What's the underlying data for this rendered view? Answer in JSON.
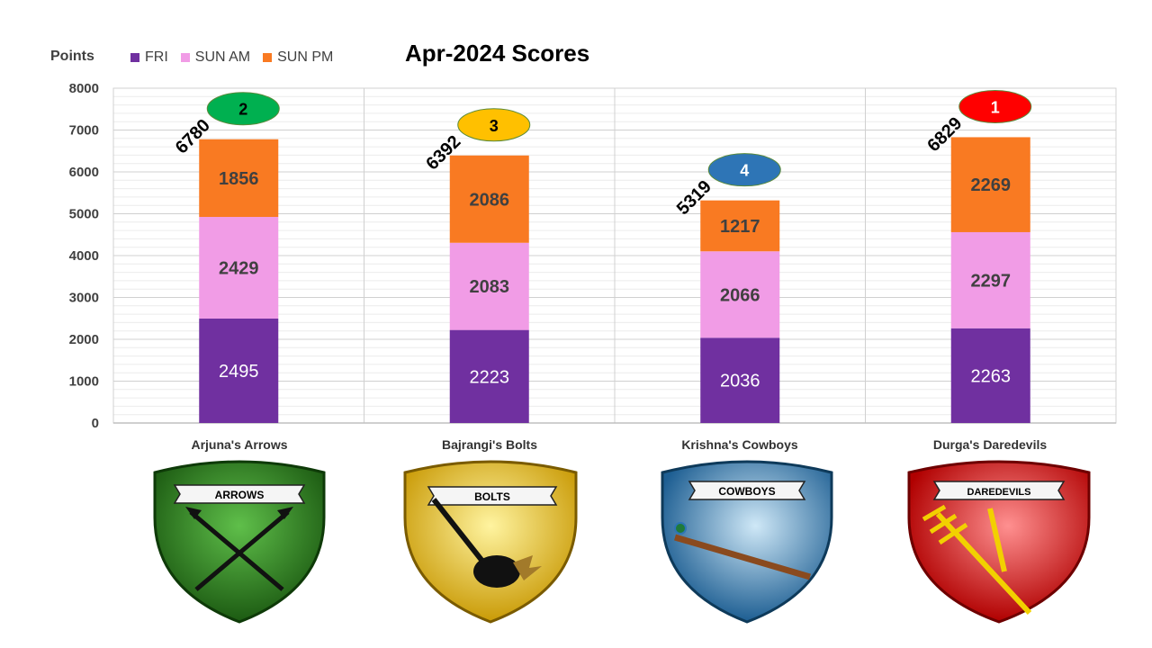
{
  "colors": {
    "fri": "#7030A0",
    "sun_am": "#F19CE6",
    "sun_pm": "#F97A22"
  },
  "chart_data": {
    "type": "bar",
    "stacked": true,
    "title": "Apr-2024 Scores",
    "ylabel": "Points",
    "xlabel": "",
    "ylim": [
      0,
      8000
    ],
    "yticks": [
      "0",
      "1000",
      "2000",
      "3000",
      "4000",
      "5000",
      "6000",
      "7000",
      "8000"
    ],
    "categories": [
      "Arjuna's Arrows",
      "Bajrangi's Bolts",
      "Krishna's Cowboys",
      "Durga's Daredevils"
    ],
    "series": [
      {
        "name": "FRI",
        "values": [
          2495,
          2223,
          2036,
          2263
        ]
      },
      {
        "name": "SUN AM",
        "values": [
          2429,
          2083,
          2066,
          2297
        ]
      },
      {
        "name": "SUN PM",
        "values": [
          1856,
          2086,
          1217,
          2269
        ]
      }
    ],
    "totals": [
      6780,
      6392,
      5319,
      6829
    ],
    "ranks": [
      "2",
      "3",
      "4",
      "1"
    ],
    "rank_colors": [
      "#00B050",
      "#FFC000",
      "#2E75B6",
      "#FF0000"
    ],
    "legend_position": "top-left",
    "grid": true
  },
  "teams": [
    {
      "name": "Arjuna's Arrows",
      "emblem_label": "ARROWS",
      "shield_color": "#2E7D1E",
      "banner_text": "ARROWS"
    },
    {
      "name": "Bajrangi's Bolts",
      "emblem_label": "BOLTS",
      "shield_color": "#E8C21A",
      "banner_text": "BOLTS"
    },
    {
      "name": "Krishna's Cowboys",
      "emblem_label": "COWBOYS",
      "shield_color": "#2D72A8",
      "banner_text": "COWBOYS"
    },
    {
      "name": "Durga's Daredevils",
      "emblem_label": "DAREDEVILS",
      "shield_color": "#E01E1E",
      "banner_text": "DAREDEVILS"
    }
  ]
}
